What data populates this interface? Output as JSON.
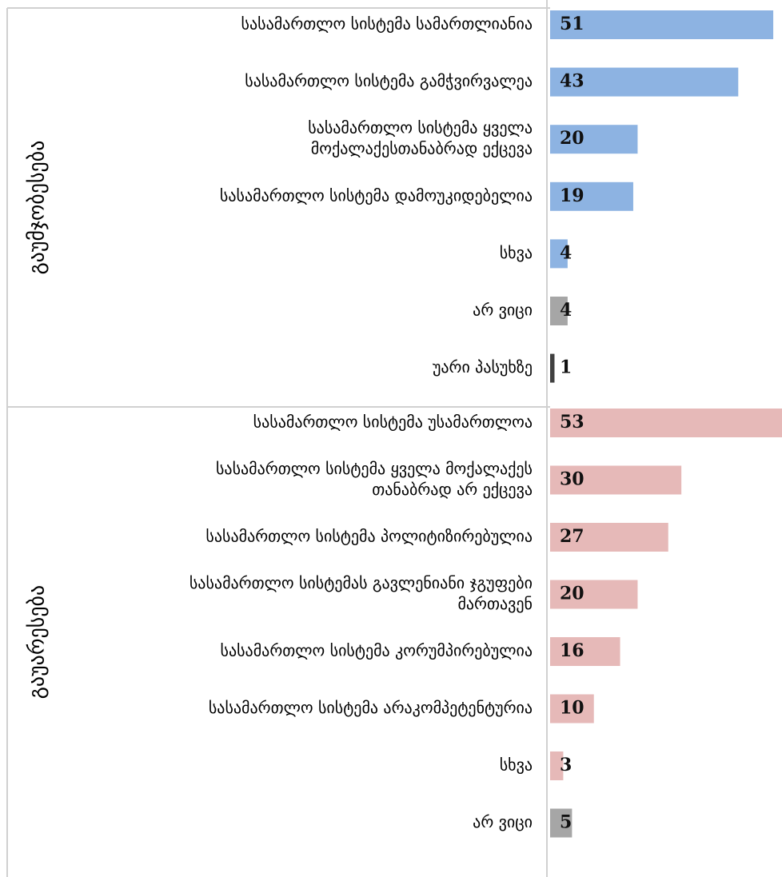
{
  "colors": {
    "improved": "#8db3e2",
    "worsened": "#e6b9b8",
    "dont_know": "#a6a6a6",
    "refused": "#404040",
    "lines": "#d0d0d0"
  },
  "chart_data": {
    "type": "bar",
    "orientation": "horizontal",
    "groups": [
      {
        "label": "გაუმჯობესება",
        "categories": [
          [
            "სასამართლო სისტემა სამართლიანია"
          ],
          [
            "სასამართლო სისტემა გამჭვირვალეა"
          ],
          [
            "სასამართლო სისტემა ყველა",
            "მოქალაქესთანაბრად ექცევა"
          ],
          [
            "სასამართლო სისტემა დამოუკიდებელია"
          ],
          [
            "სხვა"
          ],
          [
            "არ ვიცი"
          ],
          [
            "უარი პასუხზე"
          ]
        ],
        "values": [
          51,
          43,
          20,
          19,
          4,
          4,
          1
        ],
        "color_keys": [
          "improved",
          "improved",
          "improved",
          "improved",
          "improved",
          "dont_know",
          "refused"
        ]
      },
      {
        "label": "გაუარესება",
        "categories": [
          [
            "სასამართლო სისტემა უსამართლოა"
          ],
          [
            "სასამართლო სისტემა ყველა მოქალაქეს",
            "თანაბრად არ ექცევა"
          ],
          [
            "სასამართლო სისტემა პოლიტიზირებულია"
          ],
          [
            "სასამართლო სისტემას გავლენიანი ჯგუფები",
            "მართავენ"
          ],
          [
            "სასამართლო სისტემა კორუმპირებულია"
          ],
          [
            "სასამართლო სისტემა არაკომპეტენტურია"
          ],
          [
            "სხვა"
          ],
          [
            "არ ვიცი"
          ]
        ],
        "values": [
          53,
          30,
          27,
          20,
          16,
          10,
          3,
          5
        ],
        "color_keys": [
          "worsened",
          "worsened",
          "worsened",
          "worsened",
          "worsened",
          "worsened",
          "worsened",
          "dont_know"
        ]
      }
    ],
    "xlim": [
      0,
      53
    ]
  }
}
